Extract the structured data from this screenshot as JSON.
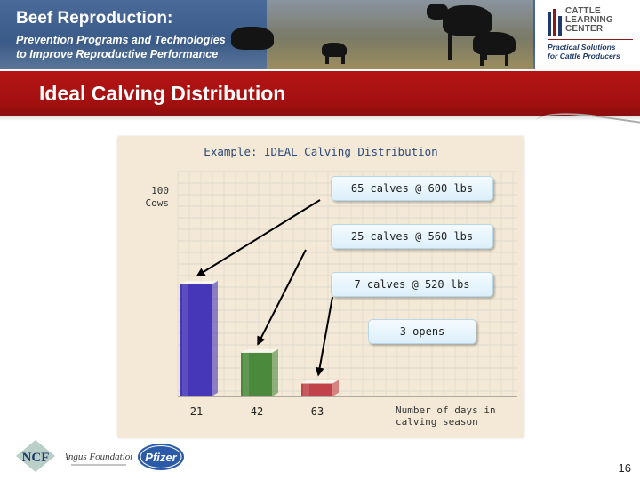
{
  "header": {
    "title": "Beef Reproduction:",
    "subtitle_line1": "Prevention Programs and Technologies",
    "subtitle_line2": "to Improve Reproductive Performance"
  },
  "logo": {
    "name_line1": "CATTLE",
    "name_line2": "LEARNING",
    "name_line3": "CENTER",
    "tag_line1": "Practical Solutions",
    "tag_line2": "for Cattle Producers"
  },
  "slide": {
    "title": "Ideal Calving Distribution",
    "page_number": "16"
  },
  "chart_data": {
    "type": "bar",
    "title": "Example: IDEAL Calving Distribution",
    "ylabel": "100 Cows",
    "ylabel_lines": [
      "100",
      "Cows"
    ],
    "xlabel": "Number of days in calving season",
    "xlabel_lines": [
      "Number of days in",
      "calving season"
    ],
    "categories": [
      "21",
      "42",
      "63"
    ],
    "values": [
      65,
      25,
      7
    ],
    "ylim": [
      0,
      100
    ],
    "bar_colors": [
      "#4537b8",
      "#4b8a3c",
      "#c0424a"
    ],
    "annotations": [
      {
        "text": "65 calves @ 600 lbs",
        "points_to": "21"
      },
      {
        "text": "25 calves @ 560 lbs",
        "points_to": "42"
      },
      {
        "text": "7 calves @ 520 lbs",
        "points_to": "63"
      },
      {
        "text": "3 opens"
      }
    ]
  },
  "footer": {
    "logos": [
      "NCF",
      "Angus Foundation",
      "Pfizer"
    ]
  }
}
